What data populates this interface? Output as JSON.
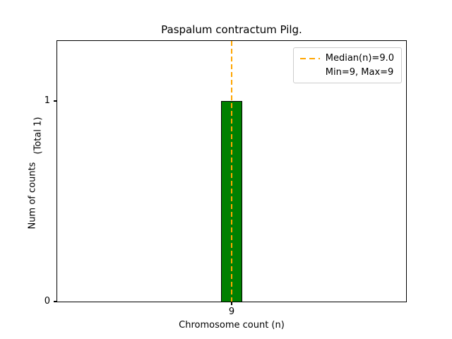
{
  "chart_data": {
    "type": "bar",
    "title": "Paspalum contractum Pilg.",
    "xlabel": "Chromosome count (n)",
    "ylabel": "Num of counts",
    "ylabel_secondary": "(Total 1)",
    "categories": [
      "9"
    ],
    "values": [
      1
    ],
    "yticks": [
      "0",
      "1"
    ],
    "ylim": [
      0,
      1.3
    ],
    "grid": false,
    "bar_color": "#008000",
    "bar_edge_color": "#000000",
    "median_line_color": "#FFA500",
    "median_value": 9.0,
    "min_value": 9,
    "max_value": 9,
    "legend": {
      "position": "upper right",
      "entries": [
        "Median(n)=9.0",
        "Min=9, Max=9"
      ]
    }
  }
}
